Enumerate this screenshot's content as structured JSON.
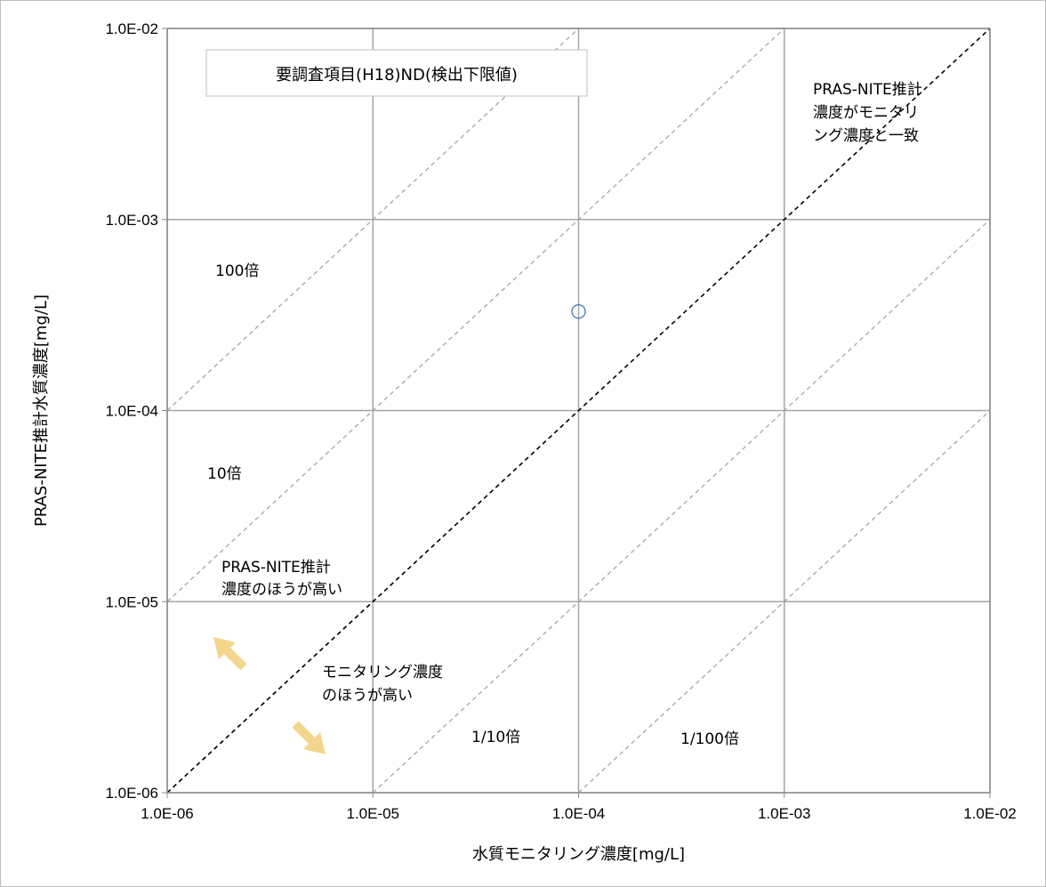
{
  "chart_data": {
    "type": "scatter",
    "xlabel": "水質モニタリング濃度[mg/L]",
    "ylabel": "PRAS-NITE推計水質濃度[mg/L]",
    "xscale": "log",
    "yscale": "log",
    "xlim": [
      1e-06,
      0.01
    ],
    "ylim": [
      1e-06,
      0.01
    ],
    "x_ticks": [
      1e-06,
      1e-05,
      0.0001,
      0.001,
      0.01
    ],
    "y_ticks": [
      1e-06,
      1e-05,
      0.0001,
      0.001,
      0.01
    ],
    "x_tick_labels": [
      "1.0E-06",
      "1.0E-05",
      "1.0E-04",
      "1.0E-03",
      "1.0E-02"
    ],
    "y_tick_labels": [
      "1.0E-06",
      "1.0E-05",
      "1.0E-04",
      "1.0E-03",
      "1.0E-02"
    ],
    "grid": true,
    "legend": {
      "label": "要調査項目(H18)ND(検出下限値)",
      "placement": "top-left",
      "marker": "open-circle",
      "color": "#4472c4"
    },
    "series": [
      {
        "name": "要調査項目(H18)ND(検出下限値)",
        "x": [
          0.0001
        ],
        "y": [
          0.00033
        ]
      }
    ],
    "reference_lines": [
      {
        "ratio": 1,
        "style": "dashed",
        "color": "#000000"
      },
      {
        "ratio": 10,
        "style": "dashed",
        "color": "#a6a6a6"
      },
      {
        "ratio": 100,
        "style": "dashed",
        "color": "#a6a6a6"
      },
      {
        "ratio": 0.1,
        "style": "dashed",
        "color": "#a6a6a6"
      },
      {
        "ratio": 0.01,
        "style": "dashed",
        "color": "#a6a6a6"
      }
    ],
    "annotations": {
      "ratio_100": "100倍",
      "ratio_10": "10倍",
      "ratio_1_10": "1/10倍",
      "ratio_1_100": "1/100倍",
      "match_line": [
        "PRAS-NITE推計",
        "濃度がモニタリ",
        "ング濃度と一致"
      ],
      "pras_higher": [
        "PRAS-NITE推計",
        "濃度のほうが高い"
      ],
      "monitoring_higher": [
        "モニタリング濃度",
        "のほうが高い"
      ]
    }
  },
  "colors": {
    "grid": "#a6a6a6",
    "axis": "#8c8c8c",
    "arrow": "#f4d58d",
    "marker": "#4472c4"
  }
}
